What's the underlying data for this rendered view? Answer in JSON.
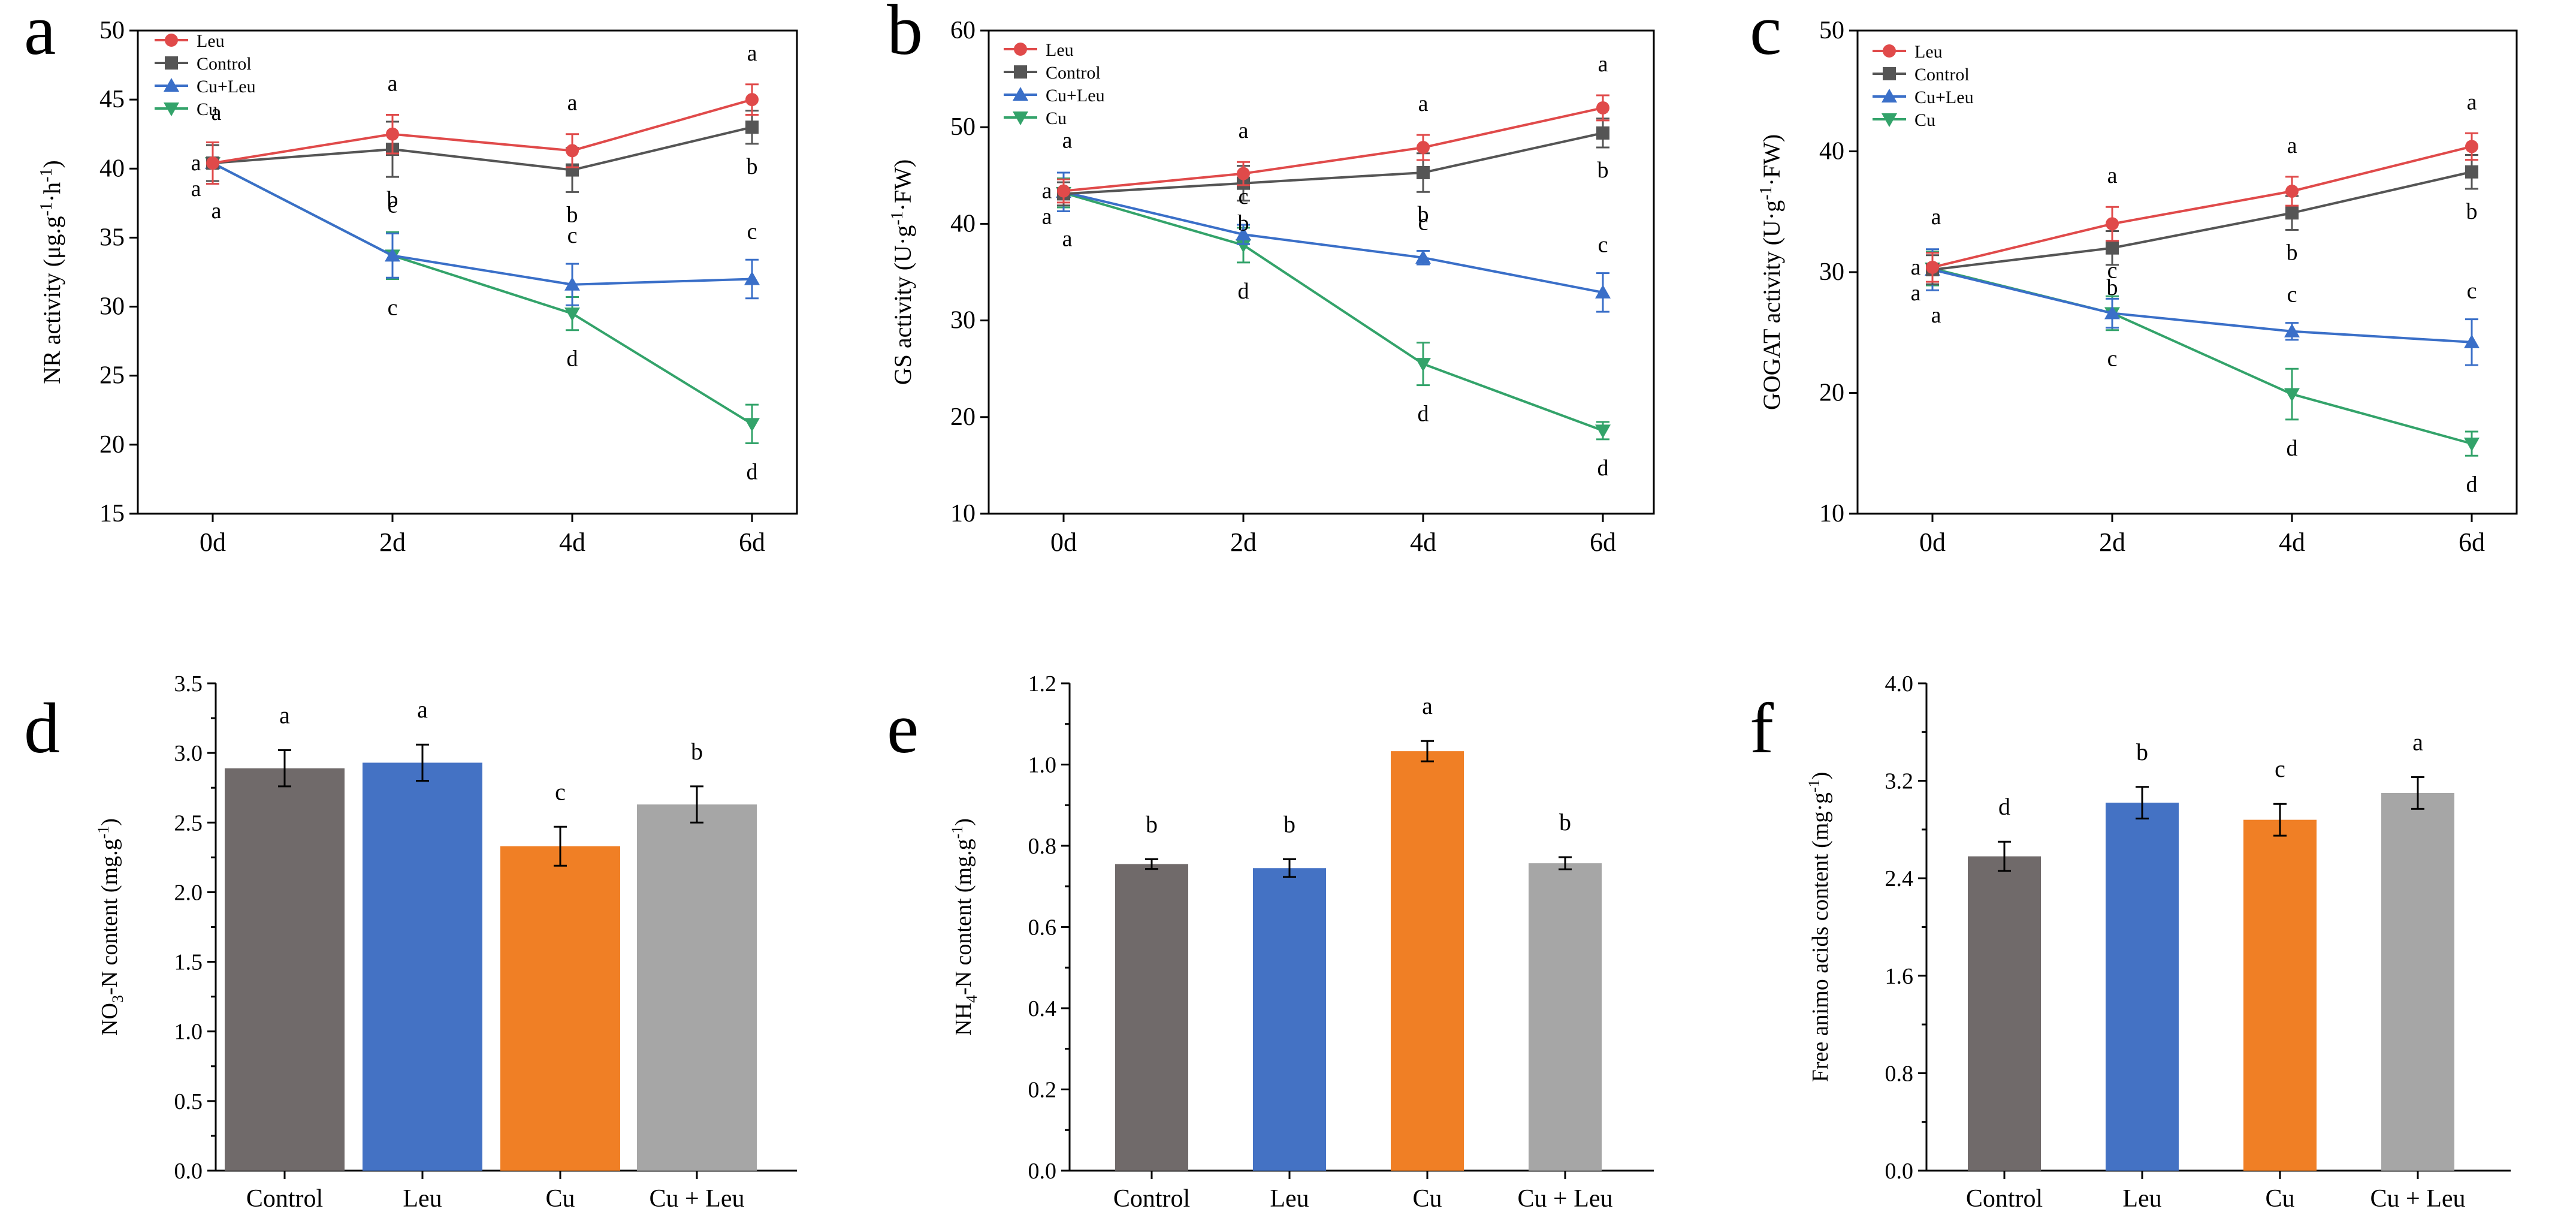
{
  "figure": {
    "colors": {
      "Leu": "#E04A4A",
      "Control": "#555555",
      "Cu+Leu": "#3A6FC8",
      "Cu": "#33A36A",
      "bar_control": "#706A6A",
      "bar_leu": "#4472C4",
      "bar_cu": "#F07F25",
      "bar_culeu": "#A6A6A6"
    },
    "markers": {
      "Leu": "circle",
      "Control": "square",
      "Cu+Leu": "triangle-up",
      "Cu": "triangle-down"
    }
  },
  "chart_data": [
    {
      "panel": "a",
      "type": "line",
      "ylabel_main": "NR activity (μg.g",
      "ylabel_sup1": "-1",
      "ylabel_mid": "·h",
      "ylabel_sup2": "-1",
      "ylabel_end": ")",
      "ylim": [
        15,
        50
      ],
      "yticks": [
        15,
        20,
        25,
        30,
        35,
        40,
        45,
        50
      ],
      "yticklabels": [
        "15",
        "20",
        "25",
        "30",
        "35",
        "40",
        "45",
        "50"
      ],
      "categories": [
        "0d",
        "2d",
        "4d",
        "6d"
      ],
      "legend": [
        "Leu",
        "Control",
        "Cu+Leu",
        "Cu"
      ],
      "series": [
        {
          "name": "Leu",
          "values": [
            40.4,
            42.5,
            41.3,
            45.0
          ],
          "errors": [
            1.5,
            1.4,
            1.2,
            1.1
          ],
          "letters": [
            "a",
            "a",
            "a",
            "a"
          ]
        },
        {
          "name": "Control",
          "values": [
            40.4,
            41.4,
            39.9,
            43.0
          ],
          "errors": [
            1.3,
            2.0,
            1.6,
            1.2
          ],
          "letters": [
            "a",
            "b",
            "b",
            "b"
          ]
        },
        {
          "name": "Cu+Leu",
          "values": [
            40.4,
            33.7,
            31.6,
            32.0
          ],
          "errors": [
            1.5,
            1.6,
            1.5,
            1.4
          ],
          "letters": [
            "a",
            "c",
            "c",
            "c"
          ]
        },
        {
          "name": "Cu",
          "values": [
            40.4,
            33.7,
            29.5,
            21.5
          ],
          "errors": [
            1.3,
            1.7,
            1.2,
            1.4
          ],
          "letters": [
            "a",
            "c",
            "d",
            "d"
          ]
        }
      ]
    },
    {
      "panel": "b",
      "type": "line",
      "ylabel_main": "GS activity (U·g",
      "ylabel_sup1": "-1",
      "ylabel_mid": "·FW)",
      "ylabel_sup2": "",
      "ylabel_end": "",
      "ylim": [
        10,
        60
      ],
      "yticks": [
        10,
        20,
        30,
        40,
        50,
        60
      ],
      "yticklabels": [
        "10",
        "20",
        "30",
        "40",
        "50",
        "60"
      ],
      "categories": [
        "0d",
        "2d",
        "4d",
        "6d"
      ],
      "legend": [
        "Leu",
        "Control",
        "Cu+Leu",
        "Cu"
      ],
      "series": [
        {
          "name": "Leu",
          "values": [
            43.4,
            45.2,
            47.9,
            52.0
          ],
          "errors": [
            1.2,
            1.2,
            1.3,
            1.3
          ],
          "letters": [
            "a",
            "a",
            "a",
            "a"
          ]
        },
        {
          "name": "Control",
          "values": [
            43.1,
            44.2,
            45.3,
            49.4
          ],
          "errors": [
            1.2,
            1.8,
            2.0,
            1.5
          ],
          "letters": [
            "a",
            "b",
            "b",
            "b"
          ]
        },
        {
          "name": "Cu+Leu",
          "values": [
            43.3,
            38.9,
            36.5,
            32.9
          ],
          "errors": [
            2.0,
            1.0,
            0.7,
            2.0
          ],
          "letters": [
            "a",
            "c",
            "c",
            "c"
          ]
        },
        {
          "name": "Cu",
          "values": [
            43.2,
            37.8,
            25.5,
            18.6
          ],
          "errors": [
            1.5,
            1.8,
            2.2,
            0.9
          ],
          "letters": [
            "a",
            "d",
            "d",
            "d"
          ]
        }
      ]
    },
    {
      "panel": "c",
      "type": "line",
      "ylabel_main": "GOGAT activity (U·g",
      "ylabel_sup1": "-1",
      "ylabel_mid": "·FW)",
      "ylabel_sup2": "",
      "ylabel_end": "",
      "ylim": [
        10,
        50
      ],
      "yticks": [
        10,
        20,
        30,
        40,
        50
      ],
      "yticklabels": [
        "10",
        "20",
        "30",
        "40",
        "50"
      ],
      "categories": [
        "0d",
        "2d",
        "4d",
        "6d"
      ],
      "legend": [
        "Leu",
        "Control",
        "Cu+Leu",
        "Cu"
      ],
      "series": [
        {
          "name": "Leu",
          "values": [
            30.4,
            34.0,
            36.7,
            40.4
          ],
          "errors": [
            1.2,
            1.4,
            1.2,
            1.1
          ],
          "letters": [
            "a",
            "a",
            "a",
            "a"
          ]
        },
        {
          "name": "Control",
          "values": [
            30.2,
            32.0,
            34.9,
            38.3
          ],
          "errors": [
            1.2,
            1.4,
            1.4,
            1.4
          ],
          "letters": [
            "a",
            "b",
            "b",
            "b"
          ]
        },
        {
          "name": "Cu+Leu",
          "values": [
            30.2,
            26.6,
            25.1,
            24.2
          ],
          "errors": [
            1.7,
            1.2,
            0.7,
            1.9
          ],
          "letters": [
            "a",
            "c",
            "c",
            "c"
          ]
        },
        {
          "name": "Cu",
          "values": [
            30.3,
            26.6,
            19.9,
            15.8
          ],
          "errors": [
            1.4,
            1.4,
            2.1,
            1.0
          ],
          "letters": [
            "a",
            "c",
            "d",
            "d"
          ]
        }
      ]
    },
    {
      "panel": "d",
      "type": "bar",
      "ylabel_main": "NO",
      "ylabel_sub": "3",
      "ylabel_rest": "-N content (mg.g",
      "ylabel_sup": "-1",
      "ylabel_end": ")",
      "ylim": [
        0,
        3.5
      ],
      "yticks": [
        0,
        0.5,
        1.0,
        1.5,
        2.0,
        2.5,
        3.0,
        3.5
      ],
      "yticklabels": [
        "0.0",
        "0.5",
        "1.0",
        "1.5",
        "2.0",
        "2.5",
        "3.0",
        "3.5"
      ],
      "categories": [
        "Control",
        "Leu",
        "Cu",
        "Cu + Leu"
      ],
      "values": [
        2.89,
        2.93,
        2.33,
        2.63
      ],
      "errors": [
        0.13,
        0.13,
        0.14,
        0.13
      ],
      "letters": [
        "a",
        "a",
        "c",
        "b"
      ]
    },
    {
      "panel": "e",
      "type": "bar",
      "ylabel_main": "NH",
      "ylabel_sub": "4",
      "ylabel_rest": "-N content  (mg.g",
      "ylabel_sup": "-1",
      "ylabel_end": ")",
      "ylim": [
        0,
        1.2
      ],
      "yticks": [
        0,
        0.2,
        0.4,
        0.6,
        0.8,
        1.0,
        1.2
      ],
      "yticklabels": [
        "0.0",
        "0.2",
        "0.4",
        "0.6",
        "0.8",
        "1.0",
        "1.2"
      ],
      "categories": [
        "Control",
        "Leu",
        "Cu",
        "Cu + Leu"
      ],
      "values": [
        0.755,
        0.745,
        1.033,
        0.757
      ],
      "errors": [
        0.012,
        0.022,
        0.025,
        0.015
      ],
      "letters": [
        "b",
        "b",
        "a",
        "b"
      ]
    },
    {
      "panel": "f",
      "type": "bar",
      "ylabel_main": "Free animo acids content  (mg·g",
      "ylabel_sub": "",
      "ylabel_rest": "",
      "ylabel_sup": "-1",
      "ylabel_end": ")",
      "ylim": [
        0,
        4.0
      ],
      "yticks": [
        0,
        0.8,
        1.6,
        2.4,
        3.2,
        4.0
      ],
      "yticklabels": [
        "0.0",
        "0.8",
        "1.6",
        "2.4",
        "3.2",
        "4.0"
      ],
      "categories": [
        "Control",
        "Leu",
        "Cu",
        "Cu + Leu"
      ],
      "values": [
        2.58,
        3.02,
        2.88,
        3.1
      ],
      "errors": [
        0.12,
        0.13,
        0.13,
        0.13
      ],
      "letters": [
        "d",
        "b",
        "c",
        "a"
      ]
    }
  ]
}
